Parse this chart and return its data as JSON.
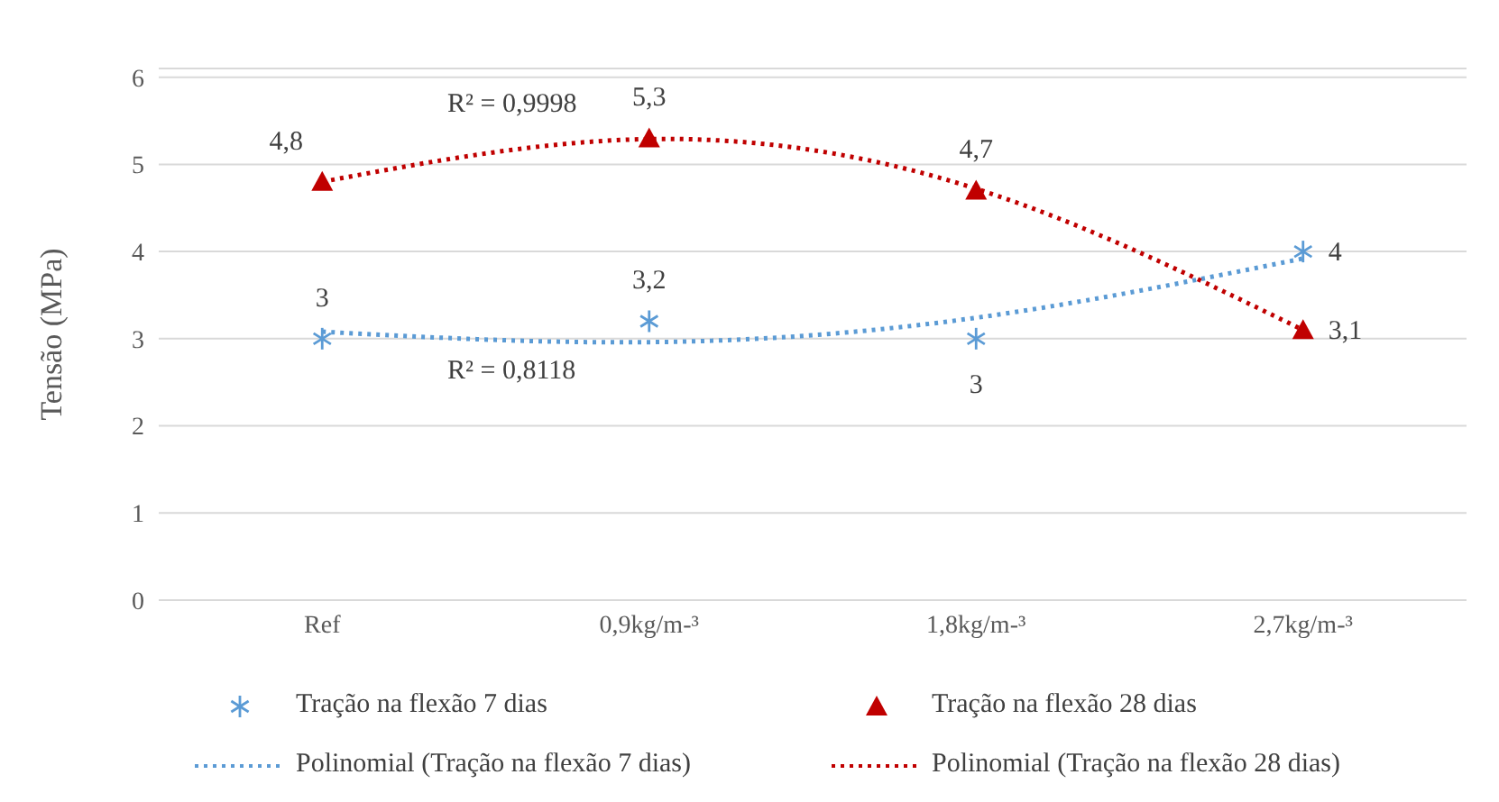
{
  "chart_data": {
    "type": "scatter",
    "ylabel": "Tensão (MPa)",
    "categories": [
      "Ref",
      "0,9kg/m-³",
      "1,8kg/m-³",
      "2,7kg/m-³"
    ],
    "series": [
      {
        "name": "Tração na flexão 7 dias",
        "marker": "cross",
        "color": "#5b9bd5",
        "values": [
          3,
          3.2,
          3,
          4
        ],
        "value_labels": [
          "3",
          "3,2",
          "3",
          "4"
        ]
      },
      {
        "name": "Tração na flexão 28 dias",
        "marker": "triangle",
        "color": "#c00000",
        "values": [
          4.8,
          5.3,
          4.7,
          3.1
        ],
        "value_labels": [
          "4,8",
          "5,3",
          "4,7",
          "3,1"
        ]
      },
      {
        "name": "Polinomial (Tração na flexão 7 dias)",
        "type": "line",
        "line_style": "dotted",
        "marker": "none",
        "color": "#5b9bd5",
        "values": [
          3.08,
          2.96,
          3.24,
          3.92
        ]
      },
      {
        "name": "Polinomial (Tração na flexão 28 dias)",
        "type": "line",
        "line_style": "dotted",
        "marker": "none",
        "color": "#c00000",
        "values": [
          4.8,
          5.29,
          4.72,
          3.1
        ]
      }
    ],
    "ylim": [
      0,
      6.1
    ],
    "yticks": [
      0,
      1,
      2,
      3,
      4,
      5,
      6
    ],
    "grid": "y",
    "legend": "bottom",
    "annotations": [
      "R² = 0,9998",
      "R² = 0,8118"
    ]
  }
}
